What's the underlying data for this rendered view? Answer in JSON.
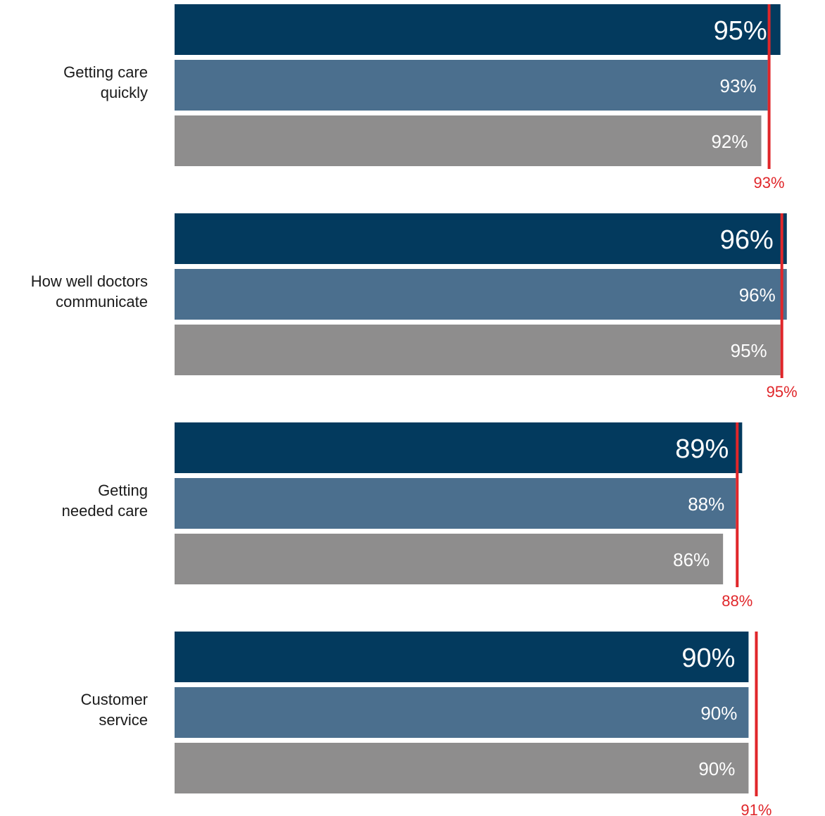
{
  "chart_data": {
    "type": "bar",
    "orientation": "horizontal",
    "categories": [
      "Getting care quickly",
      "How well doctors communicate",
      "Getting needed care",
      "Customer service"
    ],
    "category_label_lines": [
      [
        "Getting care",
        "quickly"
      ],
      [
        "How well doctors",
        "communicate"
      ],
      [
        "Getting",
        "needed care"
      ],
      [
        "Customer",
        "service"
      ]
    ],
    "series": [
      {
        "values": [
          95,
          96,
          89,
          90
        ],
        "labels": [
          "95%",
          "96%",
          "89%",
          "90%"
        ],
        "color": "#033a5e"
      },
      {
        "values": [
          93,
          96,
          88,
          90
        ],
        "labels": [
          "93%",
          "96%",
          "88%",
          "90%"
        ],
        "color": "#4b6f8e"
      },
      {
        "values": [
          92,
          95,
          86,
          90
        ],
        "labels": [
          "92%",
          "95%",
          "86%",
          "90%"
        ],
        "color": "#8e8d8d"
      }
    ],
    "reference_markers": {
      "values": [
        93,
        95,
        88,
        91
      ],
      "labels": [
        "93%",
        "95%",
        "88%",
        "91%"
      ],
      "color": "#e0262a"
    },
    "value_label_color": "#ffffff",
    "xlim": [
      0,
      96.5
    ],
    "grid": false,
    "legend": "none"
  }
}
